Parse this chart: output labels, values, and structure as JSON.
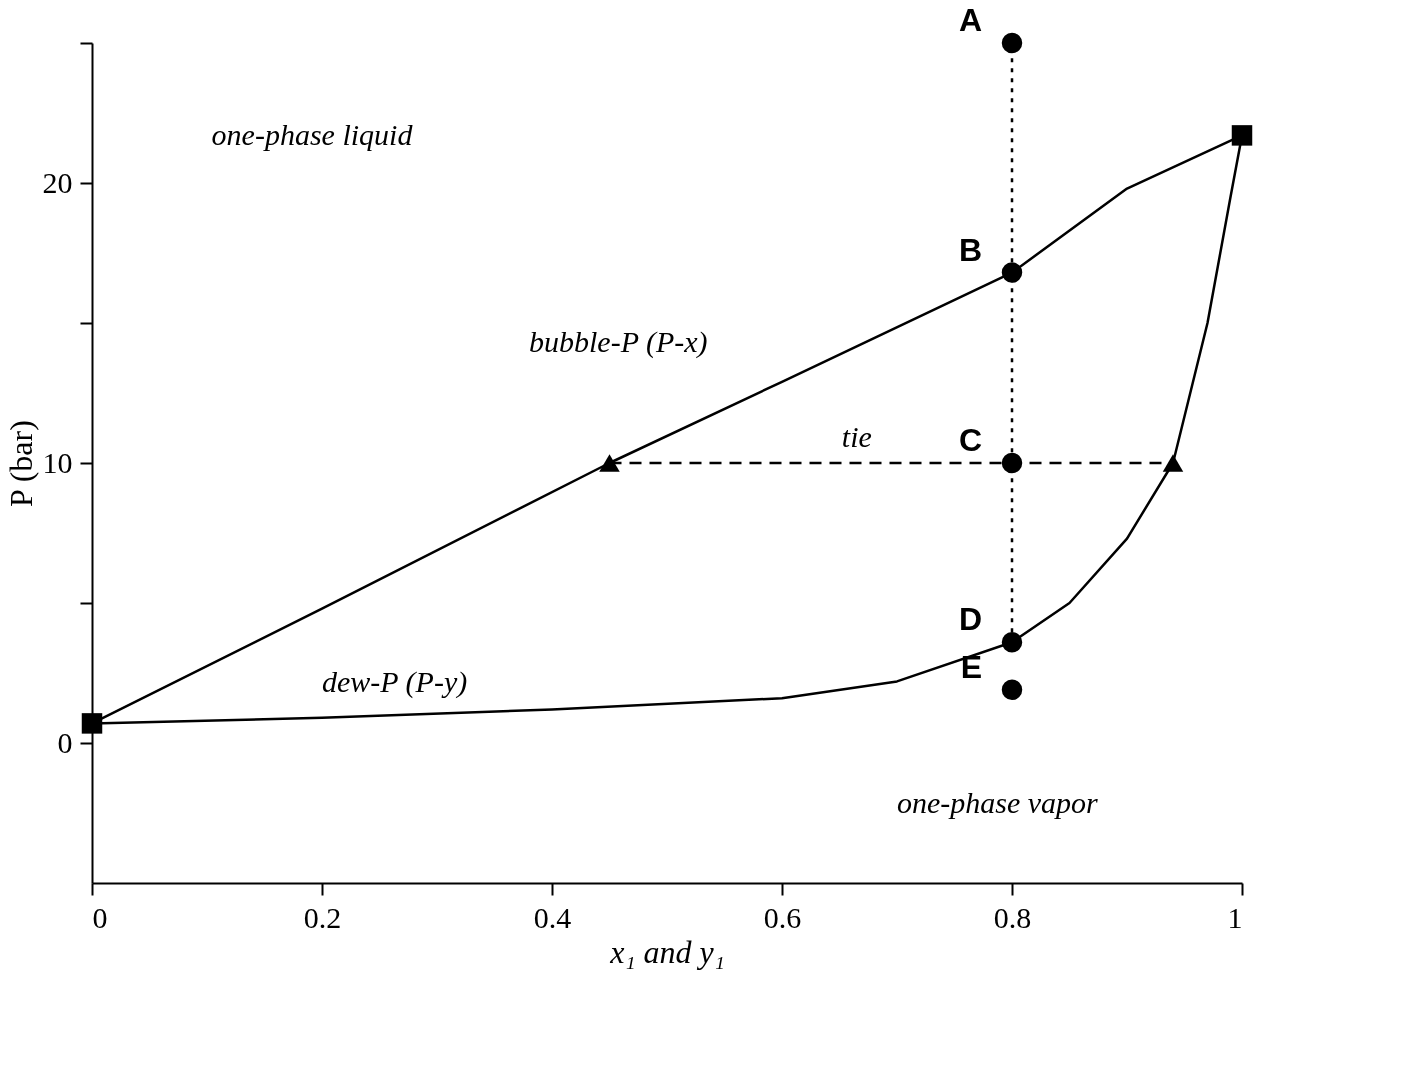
{
  "chart_data": {
    "type": "line",
    "xlabel": "x₁ and y₁",
    "ylabel": "P (bar)",
    "xlim": [
      0,
      1
    ],
    "xticks": [
      0,
      0.2,
      0.4,
      0.6,
      0.8,
      1
    ],
    "ylim": [
      -5,
      25
    ],
    "yticks": [
      {
        "value": 25,
        "label": null
      },
      20,
      {
        "value": 15,
        "label": null
      },
      10,
      {
        "value": 5,
        "label": null
      },
      0
    ],
    "grid": false,
    "series": [
      {
        "color": "#000000",
        "marker": "none",
        "line_style": "solid",
        "x": [
          0,
          0.2,
          0.45,
          0.6,
          0.8,
          0.9,
          1
        ],
        "values": [
          0.7,
          4.8,
          10,
          12.9,
          16.8,
          19.8,
          21.7
        ]
      },
      {
        "color": "#000000",
        "marker": "none",
        "line_style": "solid",
        "x": [
          0,
          0.2,
          0.4,
          0.6,
          0.7,
          0.8,
          0.85,
          0.9,
          0.94,
          0.97,
          0.99,
          1
        ],
        "values": [
          0.7,
          0.9,
          1.2,
          1.6,
          2.2,
          3.6,
          5.0,
          7.3,
          10,
          15,
          19.5,
          21.7
        ]
      },
      {
        "color": "#000000",
        "marker": "none",
        "line_style": "dashed",
        "x": [
          0.45,
          0.94
        ],
        "values": [
          10,
          10
        ]
      },
      {
        "color": "#000000",
        "marker": "none",
        "line_style": "dotted",
        "x": [
          0.8,
          0.8
        ],
        "values": [
          3.6,
          25
        ]
      },
      {
        "type": "scatter",
        "color": "#000000",
        "marker": "square",
        "x": [
          0,
          1
        ],
        "values": [
          0.7,
          21.7
        ]
      },
      {
        "type": "scatter",
        "color": "#000000",
        "marker": "triangle",
        "x": [
          0.45,
          0.94
        ],
        "values": [
          10,
          10
        ]
      },
      {
        "type": "scatter",
        "color": "#000000",
        "marker": "circle",
        "x": [
          0.8,
          0.8,
          0.8,
          0.8,
          0.8
        ],
        "values": [
          25,
          16.8,
          10,
          3.6,
          1.9
        ],
        "value_labels": [
          "A",
          "B",
          "C",
          "D",
          "E"
        ]
      }
    ],
    "annotations": [
      "one-phase liquid",
      "bubble-P (P-x)",
      "tie",
      "dew-P (P-y)",
      "one-phase vapor"
    ]
  }
}
